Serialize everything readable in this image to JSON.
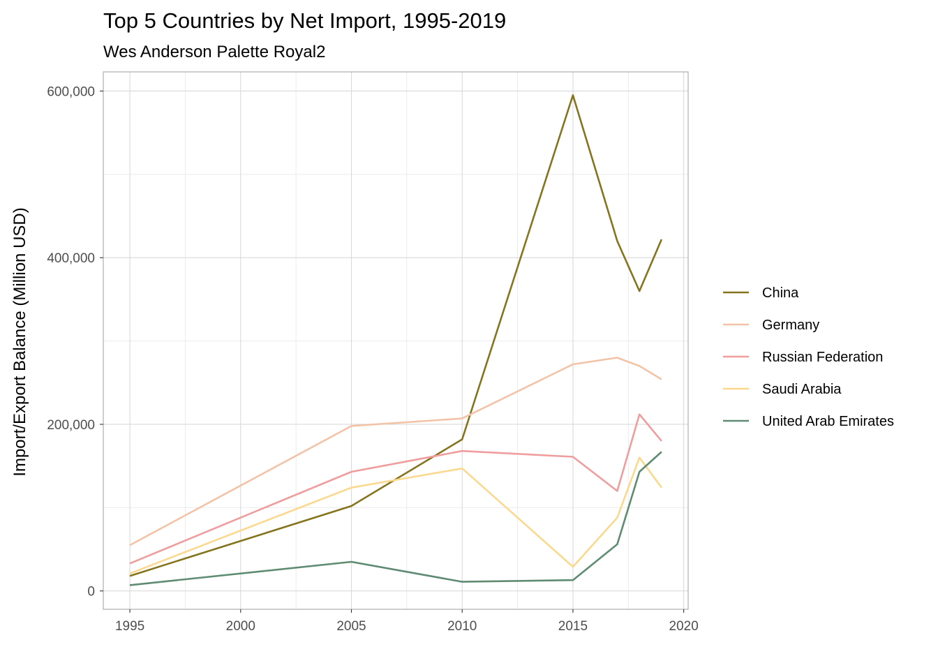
{
  "chart_data": {
    "type": "line",
    "title": "Top 5 Countries by Net Import, 1995-2019",
    "subtitle": "Wes Anderson Palette Royal2",
    "xlabel": "",
    "ylabel": "Import/Export Balance (Million USD)",
    "xlim": [
      1993.8,
      2020.2
    ],
    "ylim": [
      -22000,
      623000
    ],
    "x_ticks": [
      1995,
      2000,
      2005,
      2010,
      2015,
      2020
    ],
    "x_minor_ticks": [
      1997.5,
      2002.5,
      2007.5,
      2012.5,
      2017.5
    ],
    "y_ticks": [
      0,
      200000,
      400000,
      600000
    ],
    "y_tick_labels": [
      "0",
      "200,000",
      "400,000",
      "600,000"
    ],
    "y_minor_ticks": [
      100000,
      300000,
      500000
    ],
    "grid": true,
    "legend_position": "right",
    "x": [
      1995,
      2005,
      2010,
      2015,
      2017,
      2018,
      2019
    ],
    "series": [
      {
        "name": "China",
        "color": "#85741e",
        "values": [
          18000,
          102000,
          182000,
          595000,
          420000,
          360000,
          422000
        ]
      },
      {
        "name": "Germany",
        "color": "#f2c3a6",
        "values": [
          55000,
          198000,
          207000,
          272000,
          280000,
          270000,
          254000
        ]
      },
      {
        "name": "Russian Federation",
        "color": "#ef9d9d",
        "values": [
          33000,
          143000,
          168000,
          161000,
          120000,
          212000,
          180000
        ]
      },
      {
        "name": "Saudi Arabia",
        "color": "#fad98f",
        "values": [
          21000,
          124000,
          147000,
          29000,
          88000,
          160000,
          124000
        ]
      },
      {
        "name": "United Arab Emirates",
        "color": "#5e8b72",
        "values": [
          7000,
          35000,
          11000,
          13000,
          56000,
          143000,
          167000
        ]
      }
    ]
  }
}
